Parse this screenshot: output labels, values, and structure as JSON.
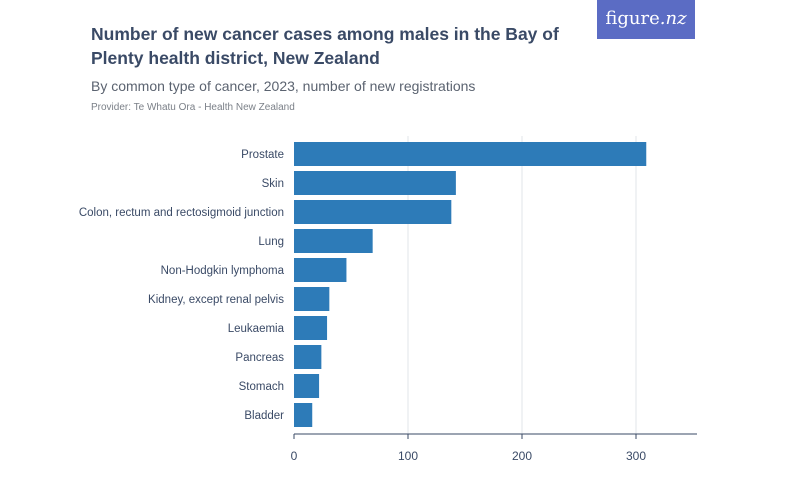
{
  "header": {
    "title": "Number of new cancer cases among males in the Bay of Plenty health district, New Zealand",
    "subtitle": "By common type of cancer, 2023, number of new registrations",
    "provider": "Provider: Te Whatu Ora - Health New Zealand"
  },
  "brand": {
    "name": "figure",
    "suffix": ".nz",
    "color": "#5b6cc4"
  },
  "chart_data": {
    "type": "bar",
    "orientation": "horizontal",
    "categories": [
      "Prostate",
      "Skin",
      "Colon, rectum and rectosigmoid junction",
      "Lung",
      "Non-Hodgkin lymphoma",
      "Kidney, except renal pelvis",
      "Leukaemia",
      "Pancreas",
      "Stomach",
      "Bladder"
    ],
    "values": [
      309,
      142,
      138,
      69,
      46,
      31,
      29,
      24,
      22,
      16
    ],
    "xticks": [
      0,
      100,
      200,
      300
    ],
    "xlim": [
      0,
      350
    ],
    "grid": true,
    "bar_color": "#2d7bb8"
  }
}
